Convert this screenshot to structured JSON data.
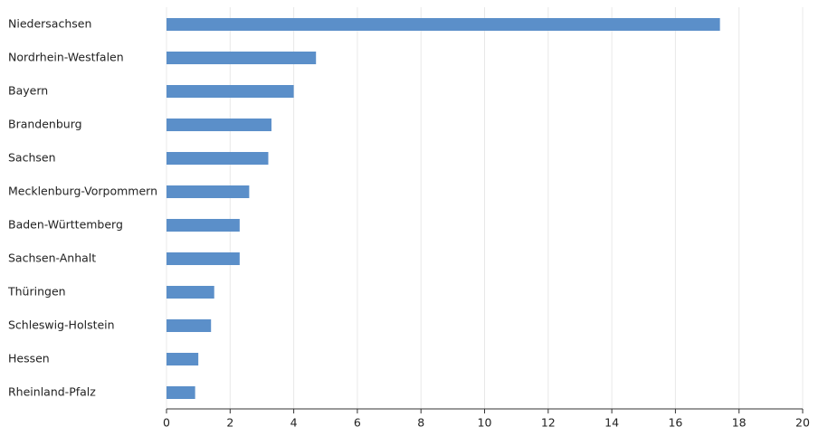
{
  "chart_data": {
    "type": "barh",
    "categories": [
      "Niedersachsen",
      "Nordrhein-Westfalen",
      "Bayern",
      "Brandenburg",
      "Sachsen",
      "Mecklenburg-Vorpommern",
      "Baden-Württemberg",
      "Sachsen-Anhalt",
      "Thüringen",
      "Schleswig-Holstein",
      "Hessen",
      "Rheinland-Pfalz"
    ],
    "values": [
      17.4,
      4.7,
      4.0,
      3.3,
      3.2,
      2.6,
      2.3,
      2.3,
      1.5,
      1.4,
      1.0,
      0.9
    ],
    "color": "#5b8fc9",
    "xlim": [
      0,
      20
    ],
    "xticks": [
      0,
      2,
      4,
      6,
      8,
      10,
      12,
      14,
      16,
      18,
      20
    ],
    "grid": true
  }
}
